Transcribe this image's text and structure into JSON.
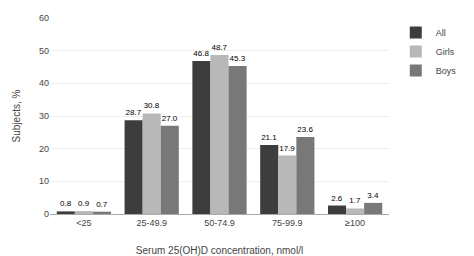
{
  "chart_data": {
    "type": "bar",
    "xlabel": "Serum 25(OH)D concentration, nmol/l",
    "ylabel": "Subjects, %",
    "categories": [
      "<25",
      "25-49.9",
      "50-74.9",
      "75-99.9",
      "≥100"
    ],
    "series": [
      {
        "name": "All",
        "color": "#3d3d3d",
        "values": [
          0.8,
          28.7,
          46.8,
          21.1,
          2.6
        ],
        "value_labels": [
          "0.8",
          "28.7",
          "46.8",
          "21.1",
          "2.6"
        ]
      },
      {
        "name": "Girls",
        "color": "#b8b8b8",
        "values": [
          0.9,
          30.8,
          48.7,
          17.9,
          1.7
        ],
        "value_labels": [
          "0.9",
          "30.8",
          "48.7",
          "17.9",
          "1.7"
        ]
      },
      {
        "name": "Boys",
        "color": "#787878",
        "values": [
          0.7,
          27.0,
          45.3,
          23.6,
          3.4
        ],
        "value_labels": [
          "0.7",
          "27.0",
          "45.3",
          "23.6",
          "3.4"
        ]
      }
    ],
    "ylim": [
      0,
      60
    ],
    "yticks": [
      0,
      10,
      20,
      30,
      40,
      50,
      60
    ],
    "grid": true,
    "data_labels": true,
    "legend": "upper right"
  }
}
